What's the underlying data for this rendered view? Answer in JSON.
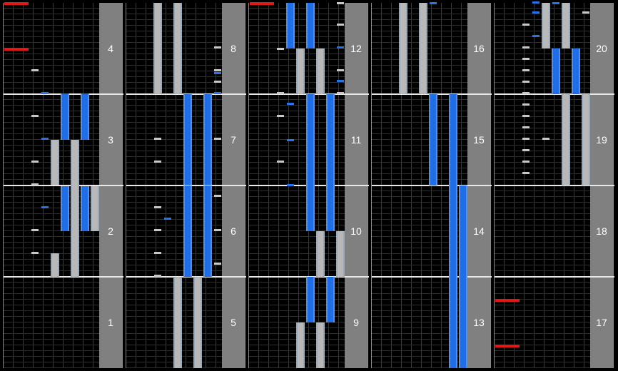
{
  "colors": {
    "white": "#c8c8c8",
    "blue": "#2a72e8",
    "red": "#e01818",
    "bg": "#000000",
    "side": "#808080"
  },
  "columns": [
    {
      "measures": [
        "1",
        "2",
        "3",
        "4"
      ],
      "notes": [
        {
          "lane": "W1",
          "pos": 1.26,
          "c": "white"
        },
        {
          "lane": "B1",
          "pos": 1.01,
          "c": "blue"
        },
        {
          "lane": "W1",
          "pos": 0.76,
          "c": "white"
        },
        {
          "lane": "B1",
          "pos": 0.51,
          "c": "blue"
        },
        {
          "lane": "W1",
          "pos": 0.26,
          "c": "white"
        },
        {
          "lane": "W1",
          "pos": 0.01,
          "c": "white"
        },
        {
          "lane": "B1",
          "pos": -0.24,
          "c": "blue"
        },
        {
          "lane": "W1",
          "pos": -0.49,
          "c": "white"
        },
        {
          "lane": "W1",
          "pos": -0.74,
          "c": "white"
        },
        {
          "lane": "SC",
          "pos": 1.99,
          "c": "red"
        },
        {
          "lane": "SC",
          "pos": 1.49,
          "c": "red"
        }
      ],
      "longs": [
        {
          "lane": "W2",
          "start": 0.01,
          "end": 0.5,
          "c": "white"
        },
        {
          "lane": "W3",
          "start": 0.01,
          "end": 0.5,
          "c": "white"
        },
        {
          "lane": "B2",
          "start": 0.5,
          "end": 1.01,
          "c": "blue"
        },
        {
          "lane": "B3",
          "start": 0.5,
          "end": 1.01,
          "c": "blue"
        },
        {
          "lane": "B2",
          "start": -0.5,
          "end": -0.01,
          "c": "blue"
        },
        {
          "lane": "B3",
          "start": -0.5,
          "end": -0.01,
          "c": "blue"
        },
        {
          "lane": "W3",
          "start": 0.01,
          "end": -0.74,
          "c": "white"
        },
        {
          "lane": "W4",
          "start": -0.01,
          "end": -0.5,
          "c": "white"
        },
        {
          "lane": "W2",
          "start": -0.74,
          "end": -1.0,
          "c": "white"
        },
        {
          "lane": "W3",
          "start": -0.74,
          "end": -1.0,
          "c": "white"
        }
      ]
    },
    {
      "measures": [
        "5",
        "6",
        "7",
        "8"
      ],
      "notes": [
        {
          "lane": "W1",
          "pos": 0.26,
          "c": "white"
        },
        {
          "lane": "W1",
          "pos": 0.51,
          "c": "white"
        },
        {
          "lane": "W1",
          "pos": -0.99,
          "c": "white"
        },
        {
          "lane": "W1",
          "pos": -0.74,
          "c": "white"
        },
        {
          "lane": "W1",
          "pos": -0.49,
          "c": "white"
        },
        {
          "lane": "W1",
          "pos": -0.24,
          "c": "white"
        },
        {
          "lane": "B1",
          "pos": -0.37,
          "c": "blue"
        },
        {
          "lane": "W4",
          "pos": 0.51,
          "c": "white"
        },
        {
          "lane": "W4",
          "pos": 1.01,
          "c": "white"
        },
        {
          "lane": "W4",
          "pos": 1.13,
          "c": "white"
        },
        {
          "lane": "W4",
          "pos": 1.26,
          "c": "white"
        },
        {
          "lane": "W4",
          "pos": 1.51,
          "c": "white"
        },
        {
          "lane": "B4",
          "pos": 1.01,
          "c": "blue"
        },
        {
          "lane": "B4",
          "pos": 1.23,
          "c": "blue"
        },
        {
          "lane": "W4",
          "pos": -0.49,
          "c": "white"
        },
        {
          "lane": "W4",
          "pos": -0.12,
          "c": "white"
        },
        {
          "lane": "W4",
          "pos": -0.86,
          "c": "white"
        }
      ],
      "longs": [
        {
          "lane": "B2",
          "start": 0.01,
          "end": 1.0,
          "c": "blue"
        },
        {
          "lane": "B3",
          "start": 0.01,
          "end": 1.0,
          "c": "blue"
        },
        {
          "lane": "W1",
          "start": 1.0,
          "end": 2.0,
          "c": "white"
        },
        {
          "lane": "W2",
          "start": 1.0,
          "end": 2.0,
          "c": "white"
        },
        {
          "lane": "B2",
          "start": -1.0,
          "end": 0.0,
          "c": "blue"
        },
        {
          "lane": "B3",
          "start": -1.0,
          "end": 0.0,
          "c": "blue"
        },
        {
          "lane": "W2",
          "start": -2.0,
          "end": -1.0,
          "c": "white"
        },
        {
          "lane": "W3",
          "start": -2.0,
          "end": -1.0,
          "c": "white"
        }
      ]
    },
    {
      "measures": [
        "9",
        "10",
        "11",
        "12"
      ],
      "notes": [
        {
          "lane": "B1",
          "pos": 0.0,
          "c": "blue"
        },
        {
          "lane": "B1",
          "pos": 0.49,
          "c": "blue"
        },
        {
          "lane": "W1",
          "pos": 0.26,
          "c": "white"
        },
        {
          "lane": "W1",
          "pos": 0.76,
          "c": "white"
        },
        {
          "lane": "B1",
          "pos": 0.89,
          "c": "blue"
        },
        {
          "lane": "W1",
          "pos": 1.01,
          "c": "white"
        },
        {
          "lane": "W1",
          "pos": 1.49,
          "c": "white"
        },
        {
          "lane": "W4",
          "pos": 1.01,
          "c": "white"
        },
        {
          "lane": "B4",
          "pos": 1.14,
          "c": "blue"
        },
        {
          "lane": "W4",
          "pos": 1.26,
          "c": "white"
        },
        {
          "lane": "B4",
          "pos": 1.51,
          "c": "blue"
        },
        {
          "lane": "W4",
          "pos": 1.76,
          "c": "white"
        },
        {
          "lane": "W4",
          "pos": 1.99,
          "c": "white"
        },
        {
          "lane": "SC",
          "pos": 1.99,
          "c": "red"
        }
      ],
      "longs": [
        {
          "lane": "B2",
          "start": 0.0,
          "end": 1.0,
          "c": "blue"
        },
        {
          "lane": "B3",
          "start": 0.0,
          "end": 1.0,
          "c": "blue"
        },
        {
          "lane": "W2",
          "start": 1.0,
          "end": 1.5,
          "c": "white"
        },
        {
          "lane": "W3",
          "start": 1.0,
          "end": 1.5,
          "c": "white"
        },
        {
          "lane": "B1",
          "start": 1.5,
          "end": 2.0,
          "c": "blue"
        },
        {
          "lane": "B2",
          "start": 1.5,
          "end": 2.0,
          "c": "blue"
        },
        {
          "lane": "W2",
          "start": -2.0,
          "end": -1.5,
          "c": "white"
        },
        {
          "lane": "W3",
          "start": -2.0,
          "end": -1.5,
          "c": "white"
        },
        {
          "lane": "B2",
          "start": -1.5,
          "end": -1.0,
          "c": "blue"
        },
        {
          "lane": "B3",
          "start": -1.5,
          "end": -1.0,
          "c": "blue"
        },
        {
          "lane": "W3",
          "start": -1.0,
          "end": -0.5,
          "c": "white"
        },
        {
          "lane": "W4",
          "start": -1.0,
          "end": -0.5,
          "c": "white"
        },
        {
          "lane": "B2",
          "start": -0.5,
          "end": 0.0,
          "c": "blue"
        },
        {
          "lane": "B3",
          "start": -0.5,
          "end": 0.0,
          "c": "blue"
        }
      ]
    },
    {
      "measures": [
        "13",
        "14",
        "15",
        "16"
      ],
      "notes": [
        {
          "lane": "B2",
          "pos": 1.99,
          "c": "blue"
        }
      ],
      "longs": [
        {
          "lane": "B2",
          "start": 0.0,
          "end": 1.0,
          "c": "blue"
        },
        {
          "lane": "B3",
          "start": 0.0,
          "end": 1.0,
          "c": "blue"
        },
        {
          "lane": "W1",
          "start": 1.0,
          "end": 2.0,
          "c": "white"
        },
        {
          "lane": "W2",
          "start": 1.0,
          "end": 2.0,
          "c": "white"
        },
        {
          "lane": "B3",
          "start": -2.0,
          "end": 0.0,
          "c": "blue"
        },
        {
          "lane": "B4",
          "start": -2.0,
          "end": 0.0,
          "c": "blue"
        }
      ]
    },
    {
      "measures": [
        "17",
        "18",
        "19",
        "20"
      ],
      "notes": [
        {
          "lane": "W1",
          "pos": 0.13,
          "c": "white"
        },
        {
          "lane": "W1",
          "pos": 0.26,
          "c": "white"
        },
        {
          "lane": "W1",
          "pos": 0.38,
          "c": "white"
        },
        {
          "lane": "W1",
          "pos": 0.51,
          "c": "white"
        },
        {
          "lane": "W1",
          "pos": 0.63,
          "c": "white"
        },
        {
          "lane": "W1",
          "pos": 0.76,
          "c": "white"
        },
        {
          "lane": "W1",
          "pos": 0.88,
          "c": "white"
        },
        {
          "lane": "W1",
          "pos": 1.01,
          "c": "white"
        },
        {
          "lane": "W1",
          "pos": 1.13,
          "c": "white"
        },
        {
          "lane": "W1",
          "pos": 1.26,
          "c": "white"
        },
        {
          "lane": "W1",
          "pos": 1.38,
          "c": "white"
        },
        {
          "lane": "W1",
          "pos": 1.51,
          "c": "white"
        },
        {
          "lane": "W1",
          "pos": 1.76,
          "c": "white"
        },
        {
          "lane": "B1",
          "pos": 1.63,
          "c": "blue"
        },
        {
          "lane": "B1",
          "pos": 1.89,
          "c": "blue"
        },
        {
          "lane": "W2",
          "pos": 0.51,
          "c": "white"
        },
        {
          "lane": "B2",
          "pos": 1.99,
          "c": "blue"
        },
        {
          "lane": "B1",
          "pos": 2.0,
          "c": "blue"
        },
        {
          "lane": "W4",
          "pos": 1.89,
          "c": "white"
        },
        {
          "lane": "SC",
          "pos": -1.76,
          "c": "red"
        },
        {
          "lane": "SC",
          "pos": -1.26,
          "c": "red"
        }
      ],
      "longs": [
        {
          "lane": "W3",
          "start": 0.0,
          "end": 1.0,
          "c": "white"
        },
        {
          "lane": "W4",
          "start": 0.0,
          "end": 1.0,
          "c": "white"
        },
        {
          "lane": "B2",
          "start": 1.0,
          "end": 1.5,
          "c": "blue"
        },
        {
          "lane": "B3",
          "start": 1.0,
          "end": 1.5,
          "c": "blue"
        },
        {
          "lane": "W2",
          "start": 1.5,
          "end": 2.0,
          "c": "white"
        },
        {
          "lane": "W3",
          "start": 1.5,
          "end": 2.0,
          "c": "white"
        }
      ]
    }
  ]
}
